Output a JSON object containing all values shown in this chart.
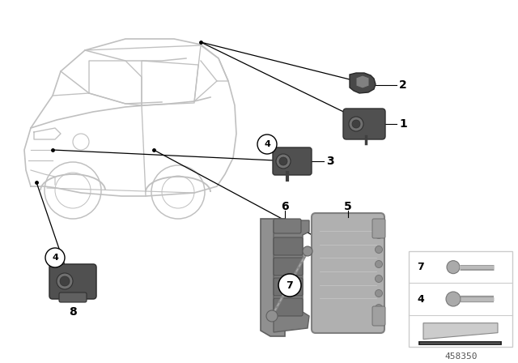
{
  "diagram_number": "458350",
  "bg": "#ffffff",
  "lc": "#000000",
  "car_color": "#d0d0d0",
  "dark_part": "#606060",
  "mid_part": "#909090",
  "light_part": "#b8b8b8",
  "label_size": 10,
  "circle_label_size": 9
}
